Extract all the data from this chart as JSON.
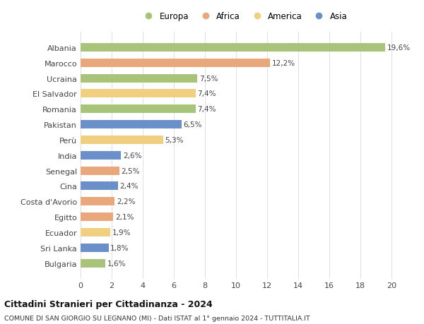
{
  "countries": [
    "Albania",
    "Marocco",
    "Ucraina",
    "El Salvador",
    "Romania",
    "Pakistan",
    "Perù",
    "India",
    "Senegal",
    "Cina",
    "Costa d'Avorio",
    "Egitto",
    "Ecuador",
    "Sri Lanka",
    "Bulgaria"
  ],
  "values": [
    19.6,
    12.2,
    7.5,
    7.4,
    7.4,
    6.5,
    5.3,
    2.6,
    2.5,
    2.4,
    2.2,
    2.1,
    1.9,
    1.8,
    1.6
  ],
  "labels": [
    "19,6%",
    "12,2%",
    "7,5%",
    "7,4%",
    "7,4%",
    "6,5%",
    "5,3%",
    "2,6%",
    "2,5%",
    "2,4%",
    "2,2%",
    "2,1%",
    "1,9%",
    "1,8%",
    "1,6%"
  ],
  "regions": [
    "Europa",
    "Africa",
    "Europa",
    "America",
    "Europa",
    "Asia",
    "America",
    "Asia",
    "Africa",
    "Asia",
    "Africa",
    "Africa",
    "America",
    "Asia",
    "Europa"
  ],
  "colors": {
    "Europa": "#a8c47a",
    "Africa": "#e8a87c",
    "America": "#f0d080",
    "Asia": "#6b8fc9"
  },
  "legend_order": [
    "Europa",
    "Africa",
    "America",
    "Asia"
  ],
  "title": "Cittadini Stranieri per Cittadinanza - 2024",
  "subtitle": "COMUNE DI SAN GIORGIO SU LEGNANO (MI) - Dati ISTAT al 1° gennaio 2024 - TUTTITALIA.IT",
  "xlim": [
    0,
    21
  ],
  "xticks": [
    0,
    2,
    4,
    6,
    8,
    10,
    12,
    14,
    16,
    18,
    20
  ],
  "bg_color": "#ffffff",
  "grid_color": "#e0e0e0",
  "bar_height": 0.55,
  "label_fontsize": 7.5,
  "ytick_fontsize": 8.0,
  "xtick_fontsize": 8.0,
  "legend_fontsize": 8.5,
  "title_fontsize": 9.0,
  "subtitle_fontsize": 6.8
}
